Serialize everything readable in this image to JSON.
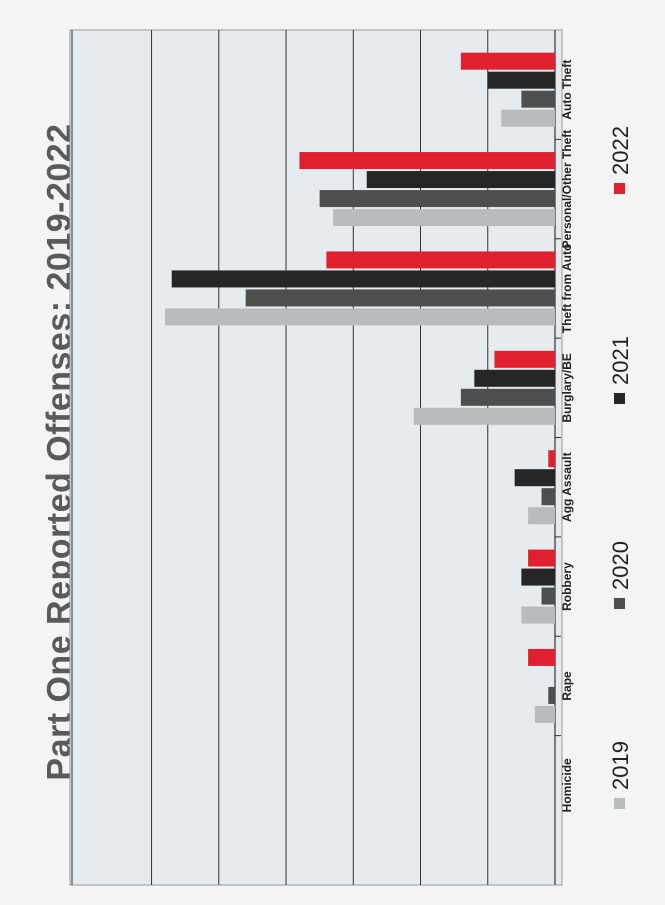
{
  "title": "Part One Reported Offenses: 2019-2022",
  "chart_data": {
    "type": "bar",
    "orientation": "horizontal",
    "categories": [
      "Homicide",
      "Rape",
      "Robbery",
      "Agg Assault",
      "Burglary/BE",
      "Theft from Auto",
      "Personal/Other Theft",
      "Auto Theft"
    ],
    "series": [
      {
        "name": "2019",
        "color": "#b9bcbc",
        "values": [
          0,
          3,
          5,
          4,
          21,
          58,
          33,
          8
        ]
      },
      {
        "name": "2020",
        "color": "#4e4e4e",
        "values": [
          0,
          1,
          2,
          2,
          14,
          46,
          35,
          5
        ]
      },
      {
        "name": "2021",
        "color": "#262626",
        "values": [
          0,
          0,
          5,
          6,
          12,
          57,
          28,
          10
        ]
      },
      {
        "name": "2022",
        "color": "#e0202e",
        "values": [
          0,
          4,
          4,
          1,
          9,
          34,
          38,
          14
        ]
      }
    ],
    "xlim": [
      0,
      58
    ],
    "grid": true,
    "legend": "bottom"
  }
}
